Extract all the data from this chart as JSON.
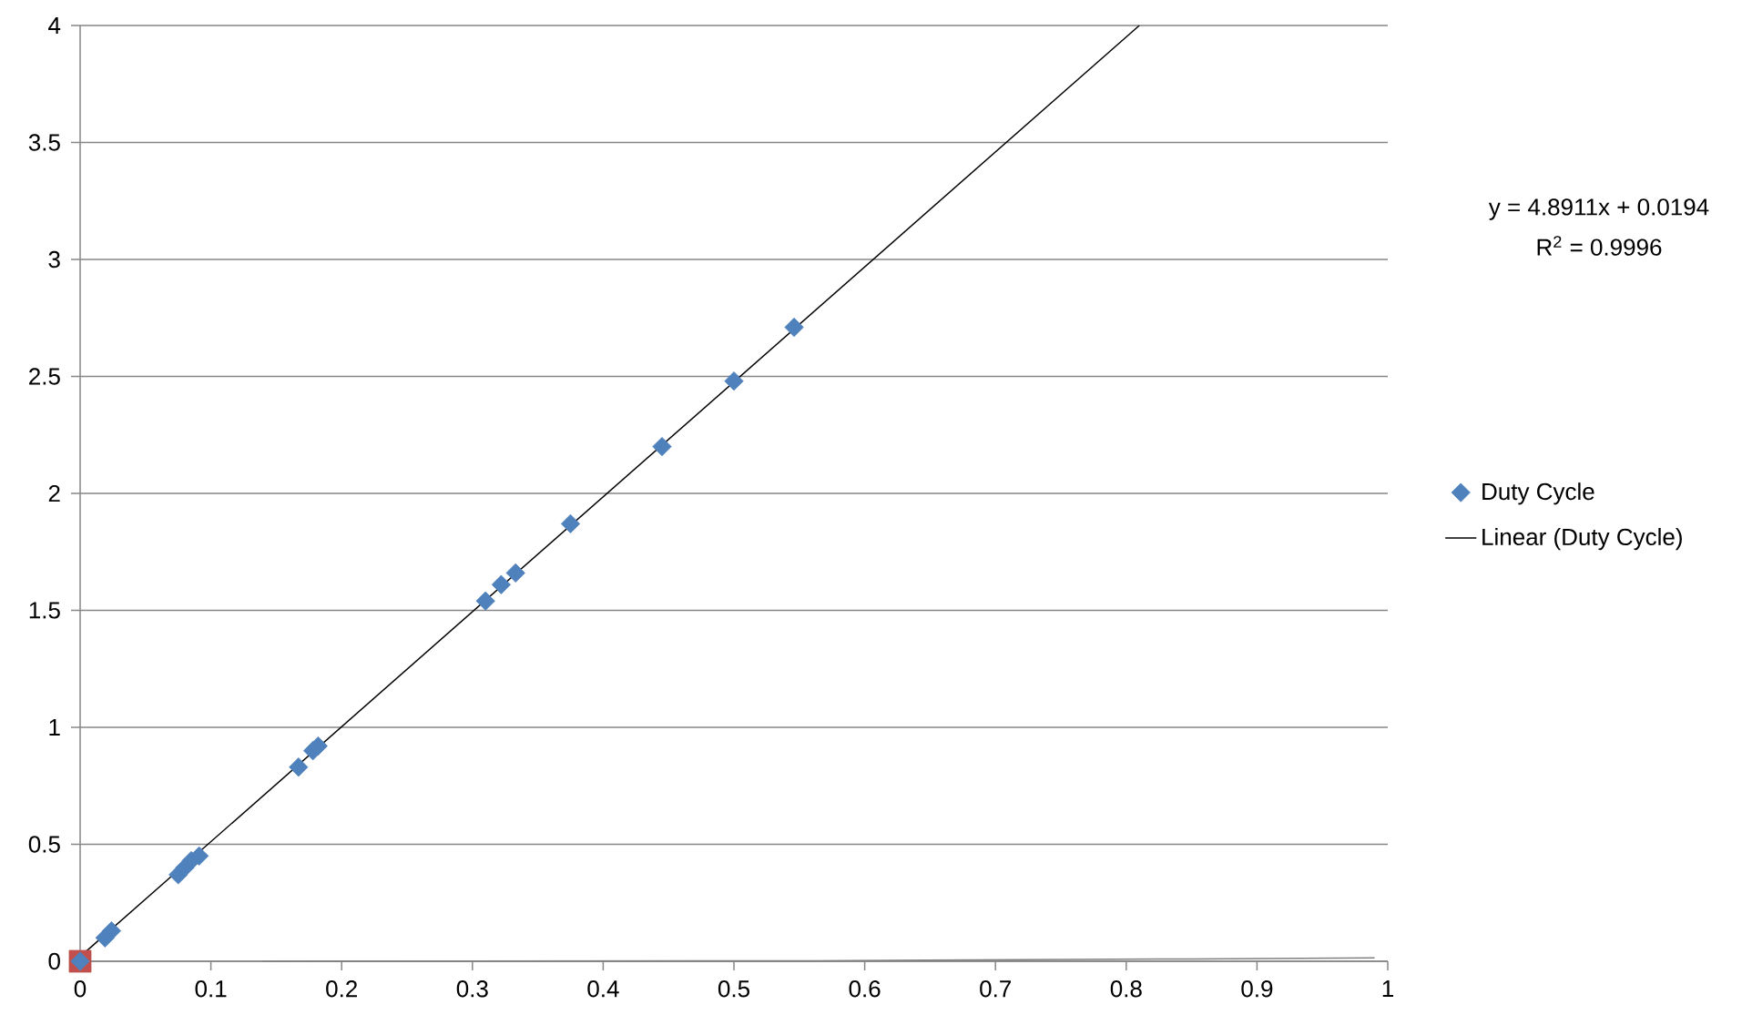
{
  "chart_data": {
    "type": "scatter",
    "series": [
      {
        "color": "#c0504d",
        "marker": "square",
        "x": [
          0
        ],
        "values": [
          0
        ]
      },
      {
        "name": "Duty Cycle",
        "color": "#4f81bd",
        "marker": "diamond",
        "x": [
          0,
          0.019,
          0.024,
          0.075,
          0.08,
          0.085,
          0.091,
          0.167,
          0.178,
          0.182,
          0.31,
          0.322,
          0.333,
          0.375,
          0.445,
          0.5,
          0.546
        ],
        "values": [
          0,
          0.1,
          0.13,
          0.37,
          0.4,
          0.43,
          0.45,
          0.83,
          0.9,
          0.92,
          1.54,
          1.61,
          1.66,
          1.87,
          2.2,
          2.48,
          2.71
        ]
      },
      {
        "type": "line",
        "color": "#808080",
        "marker": "none",
        "x": [
          0.14,
          0.56,
          0.85,
          0.99
        ],
        "values": [
          0,
          0.002,
          0.01,
          0.015
        ]
      },
      {
        "name": "Linear (Duty Cycle)",
        "type": "line",
        "color": "#000000",
        "marker": "none",
        "x": [
          0,
          0.81
        ],
        "values": [
          0.02,
          4
        ]
      }
    ],
    "xlim": [
      0,
      1
    ],
    "xticks": [
      0,
      0.1,
      0.2,
      0.3,
      0.4,
      0.5,
      0.6,
      0.7,
      0.8,
      0.9,
      1
    ],
    "ylim": [
      0,
      4
    ],
    "yticks": [
      0,
      0.5,
      1,
      1.5,
      2,
      2.5,
      3,
      3.5,
      4
    ],
    "grid": "y",
    "legend": "right",
    "annotations": [
      "y = 4.8911x + 0.0194",
      "R$^{2}$ = 0.9996"
    ]
  }
}
